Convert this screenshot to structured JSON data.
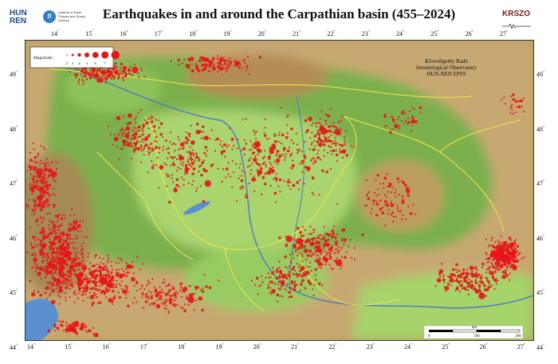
{
  "header": {
    "title": "Earthquakes in and around the Carpathian basin (455–2024)",
    "hunren_line1": "HUN",
    "hunren_line2": "REN",
    "institute_text": "Institute of Earth Physics and Space Science",
    "krszo": "KRSZO"
  },
  "map": {
    "top_lon_ticks": [
      "14",
      "15",
      "16",
      "17",
      "18",
      "19",
      "20",
      "21",
      "22",
      "23",
      "24",
      "25",
      "26",
      "27"
    ],
    "bottom_lon_ticks": [
      "14",
      "15",
      "16",
      "17",
      "18",
      "19",
      "20",
      "21",
      "22",
      "23",
      "24",
      "25",
      "26",
      "27"
    ],
    "lat_ticks": [
      "49",
      "48",
      "47",
      "46",
      "45",
      "44"
    ],
    "degree": "°",
    "legend": {
      "label": "Magnitude",
      "magnitudes": [
        "2",
        "3",
        "4",
        "5",
        "6",
        "7",
        "8"
      ]
    },
    "observatory": {
      "line1": "Kövesligethy Radó",
      "line2": "Seismological Observatory",
      "line3": "HUN-REN EPSS"
    },
    "scale_bar": {
      "label": "km",
      "ticks": [
        "0",
        "100",
        "200"
      ]
    },
    "colors": {
      "quake": "#e8141a",
      "lowland": "#a8d66c",
      "water": "#5a8fd0",
      "border": "#f2e840",
      "river": "#4a78c8"
    }
  }
}
